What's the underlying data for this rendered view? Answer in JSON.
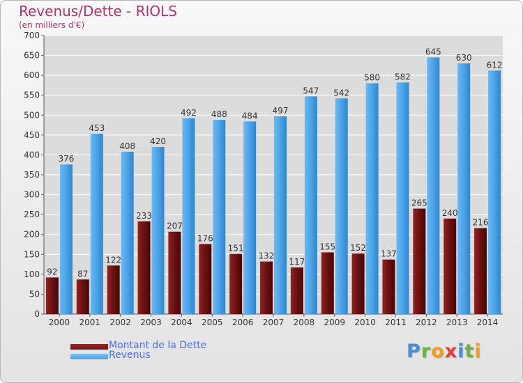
{
  "header": {
    "title": "Revenus/Dette - RIOLS",
    "subtitle": "(en milliers d'€)"
  },
  "legend": [
    {
      "label": "Montant de la Dette",
      "color": "#6b1010"
    },
    {
      "label": "Revenus",
      "color": "#4aa3e8"
    }
  ],
  "logo": {
    "text": "Proxiti",
    "letters": [
      {
        "ch": "P",
        "color": "#4a8fd4"
      },
      {
        "ch": "r",
        "color": "#6cb33f"
      },
      {
        "ch": "o",
        "color": "#f0a020"
      },
      {
        "ch": "x",
        "color": "#e0403a"
      },
      {
        "ch": "i",
        "color": "#4a8fd4"
      },
      {
        "ch": "t",
        "color": "#6cb33f"
      },
      {
        "ch": "i",
        "color": "#f0a020"
      }
    ]
  },
  "chart_data": {
    "type": "bar",
    "title": "Revenus/Dette - RIOLS",
    "ylabel": "(en milliers d'€)",
    "ylim": [
      0,
      700
    ],
    "yticks": [
      0,
      50,
      100,
      150,
      200,
      250,
      300,
      350,
      400,
      450,
      500,
      550,
      600,
      650,
      700
    ],
    "grid": true,
    "legend_position": "bottom-left",
    "categories": [
      "2000",
      "2001",
      "2002",
      "2003",
      "2004",
      "2005",
      "2006",
      "2007",
      "2008",
      "2009",
      "2010",
      "2011",
      "2012",
      "2013",
      "2014"
    ],
    "series": [
      {
        "name": "Montant de la Dette",
        "color": "#6b1010",
        "values": [
          92,
          87,
          122,
          233,
          207,
          176,
          151,
          132,
          117,
          155,
          152,
          137,
          265,
          240,
          216
        ]
      },
      {
        "name": "Revenus",
        "color": "#4aa3e8",
        "values": [
          376,
          453,
          408,
          420,
          492,
          488,
          484,
          497,
          547,
          542,
          580,
          582,
          645,
          630,
          612
        ]
      }
    ]
  }
}
